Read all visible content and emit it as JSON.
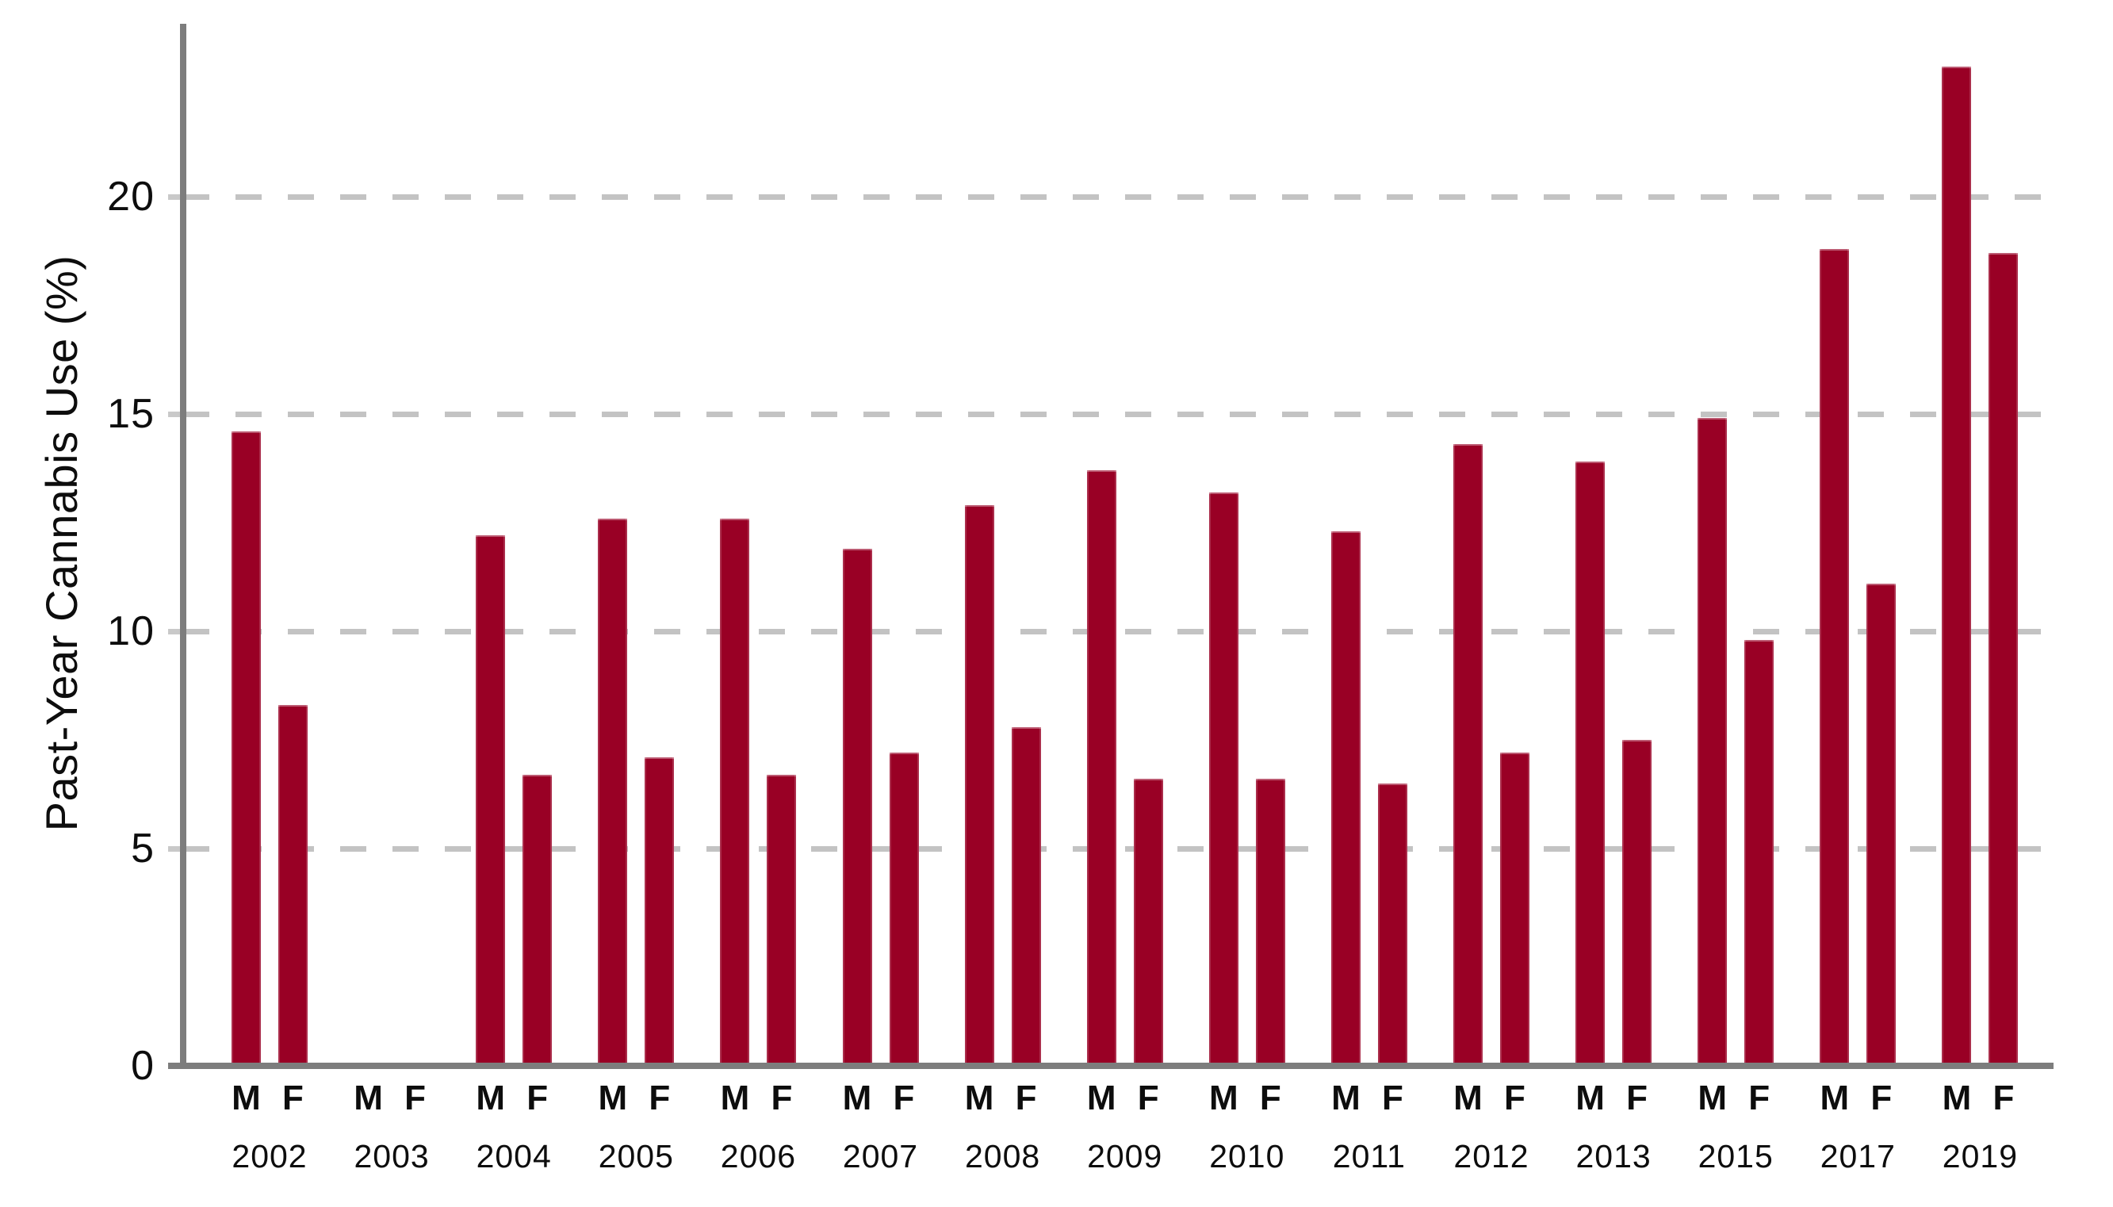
{
  "chart_data": {
    "type": "bar",
    "title": "",
    "ylabel": "Past-Year Cannabis Use (%)",
    "xlabel": "",
    "ylim": [
      0,
      24
    ],
    "yticks": [
      0,
      5,
      10,
      15,
      20
    ],
    "grid": "horizontal-dashed",
    "legend": "none",
    "group_labels": [
      "M",
      "F"
    ],
    "categories": [
      "2002",
      "2003",
      "2004",
      "2005",
      "2006",
      "2007",
      "2008",
      "2009",
      "2010",
      "2011",
      "2012",
      "2013",
      "2015",
      "2017",
      "2019"
    ],
    "series": [
      {
        "name": "M",
        "values": [
          14.6,
          null,
          12.2,
          12.6,
          12.6,
          11.9,
          12.9,
          13.7,
          13.2,
          12.3,
          14.3,
          13.9,
          14.9,
          18.8,
          23.0
        ]
      },
      {
        "name": "F",
        "values": [
          8.3,
          null,
          6.7,
          7.1,
          6.7,
          7.2,
          7.8,
          6.6,
          6.6,
          6.5,
          7.2,
          7.5,
          9.8,
          11.1,
          18.7
        ]
      }
    ],
    "note_missing_years": [
      "2003"
    ],
    "bar_color": "#990025",
    "axis_color": "#7d7d7d",
    "gridline_color": "#c3c3c3",
    "text_color": "#0d0d0d"
  }
}
